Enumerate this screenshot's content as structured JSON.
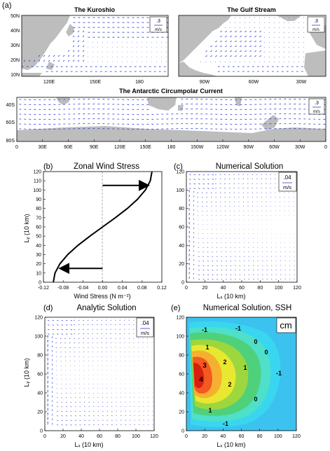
{
  "figure_label": "(a)",
  "panels": {
    "kuroshio": {
      "title": "The Kuroshio",
      "y_ticks": [
        "50N",
        "40N",
        "30N",
        "20N",
        "10N"
      ],
      "x_ticks": [
        "120E",
        "150E",
        "180"
      ],
      "legend_value": ".3",
      "legend_unit": "m/s"
    },
    "gulf": {
      "title": "The Gulf Stream",
      "x_ticks": [
        "90W",
        "60W",
        "30W"
      ],
      "legend_value": ".3",
      "legend_unit": "m/s"
    },
    "acc": {
      "title": "The Antarctic Circumpolar Current",
      "y_ticks": [
        "40S",
        "60S",
        "80S"
      ],
      "x_ticks": [
        "0",
        "30E",
        "60E",
        "90E",
        "120E",
        "150E",
        "180",
        "150W",
        "120W",
        "90W",
        "60W",
        "30W",
        "0"
      ],
      "legend_value": ".3",
      "legend_unit": "m/s"
    },
    "b": {
      "label": "(b)",
      "title": "Zonal Wind Stress",
      "xlabel": "Wind Stress (N m⁻²)",
      "ylabel": "Lᵧ (10 km)"
    },
    "c": {
      "label": "(c)",
      "title": "Numerical Solution",
      "xlabel": "Lₓ (10 km)",
      "legend_value": ".04",
      "legend_unit": "m/s"
    },
    "d": {
      "label": "(d)",
      "title": "Analytic Solution",
      "xlabel": "Lₓ (10 km)",
      "ylabel": "Lᵧ (10 km)",
      "legend_value": ".04",
      "legend_unit": "m/s"
    },
    "e": {
      "label": "(e)",
      "title": "Numerical Solution, SSH",
      "xlabel": "Lₓ (10 km)",
      "unit_box": "cm",
      "contour_labels": [
        "-1",
        "-1",
        "0",
        "1",
        "2",
        "3",
        "4",
        "2",
        "1",
        "0",
        "-1",
        "1",
        "-1",
        "0"
      ]
    }
  },
  "chart_data": [
    {
      "panel": "b",
      "type": "line",
      "title": "Zonal Wind Stress",
      "xlabel": "Wind Stress (N m⁻²)",
      "ylabel": "Lᵧ (10 km)",
      "xlim": [
        -0.12,
        0.12
      ],
      "ylim": [
        0,
        120
      ],
      "x_ticks": [
        -0.12,
        -0.08,
        -0.04,
        0,
        0.04,
        0.08,
        0.12
      ],
      "x_tick_labels": [
        "-0.12",
        "-0.08",
        "-0.04",
        "0.00",
        "0.04",
        "0.08",
        "0.12"
      ],
      "y_ticks": [
        0,
        10,
        20,
        30,
        40,
        50,
        60,
        70,
        80,
        90,
        100,
        110,
        120
      ],
      "y_tick_labels": [
        "0",
        "10",
        "20",
        "30",
        "40",
        "50",
        "60",
        "70",
        "80",
        "90",
        "100",
        "110",
        "120"
      ],
      "y": [
        0,
        10,
        20,
        30,
        40,
        50,
        60,
        70,
        80,
        90,
        100,
        110,
        120
      ],
      "x": [
        -0.1,
        -0.0966,
        -0.0866,
        -0.0707,
        -0.05,
        -0.0259,
        0,
        0.0259,
        0.05,
        0.0707,
        0.0866,
        0.0966,
        0.1
      ]
    },
    {
      "panel": "c",
      "type": "scatter",
      "title": "Numerical Solution",
      "xlabel": "Lₓ (10 km)",
      "xlim": [
        0,
        120
      ],
      "ylim": [
        0,
        120
      ],
      "x_ticks": [
        0,
        20,
        40,
        60,
        80,
        100,
        120
      ],
      "y_ticks": [
        0,
        20,
        40,
        60,
        80,
        100,
        120
      ]
    },
    {
      "panel": "d",
      "type": "scatter",
      "title": "Analytic Solution",
      "xlabel": "Lₓ (10 km)",
      "ylabel": "Lᵧ (10 km)",
      "xlim": [
        0,
        120
      ],
      "ylim": [
        0,
        120
      ],
      "x_ticks": [
        0,
        20,
        40,
        60,
        80,
        100,
        120
      ],
      "y_ticks": [
        0,
        20,
        40,
        60,
        80,
        100,
        120
      ]
    },
    {
      "panel": "e",
      "type": "heatmap",
      "title": "Numerical Solution, SSH",
      "xlabel": "Lₓ (10 km)",
      "xlim": [
        0,
        120
      ],
      "ylim": [
        0,
        120
      ],
      "x_ticks": [
        0,
        20,
        40,
        60,
        80,
        100,
        120
      ],
      "y_ticks": [
        0,
        20,
        40,
        60,
        80,
        100,
        120
      ]
    }
  ]
}
